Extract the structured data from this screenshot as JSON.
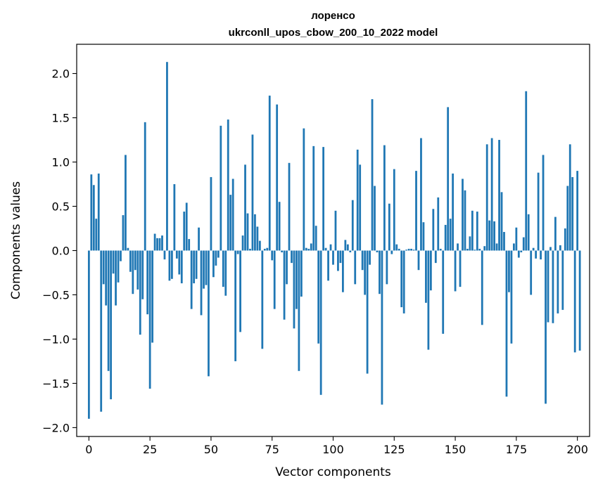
{
  "chart_data": {
    "type": "bar",
    "title": "лоренсо",
    "subtitle": "ukrconll_upos_cbow_200_10_2022 model",
    "xlabel": "Vector components",
    "ylabel": "Components values",
    "xlim": [
      -5,
      205
    ],
    "ylim": [
      -2.1,
      2.33
    ],
    "xticks": [
      0,
      25,
      50,
      75,
      100,
      125,
      150,
      175,
      200
    ],
    "xtick_labels": [
      "0",
      "25",
      "50",
      "75",
      "100",
      "125",
      "150",
      "175",
      "200"
    ],
    "yticks": [
      -2.0,
      -1.5,
      -1.0,
      -0.5,
      0.0,
      0.5,
      1.0,
      1.5,
      2.0
    ],
    "ytick_labels": [
      "−2.0",
      "−1.5",
      "−1.0",
      "−0.5",
      "0.0",
      "0.5",
      "1.0",
      "1.5",
      "2.0"
    ],
    "bar_color": "#1f77b4",
    "grid": false,
    "values": [
      -1.9,
      0.86,
      0.74,
      0.36,
      0.87,
      -1.82,
      -0.38,
      -0.62,
      -1.36,
      -1.68,
      -0.26,
      -0.62,
      -0.36,
      -0.12,
      0.4,
      1.08,
      0.03,
      -0.24,
      -0.49,
      -0.22,
      -0.44,
      -0.95,
      -0.55,
      1.45,
      -0.72,
      -1.56,
      -1.04,
      0.19,
      0.14,
      0.14,
      0.17,
      -0.1,
      2.13,
      -0.34,
      -0.32,
      0.75,
      -0.09,
      -0.27,
      -0.37,
      0.44,
      0.54,
      0.13,
      -0.66,
      -0.37,
      -0.32,
      0.26,
      -0.73,
      -0.43,
      -0.39,
      -1.42,
      0.83,
      -0.3,
      -0.17,
      -0.08,
      1.41,
      -0.41,
      -0.51,
      1.48,
      0.63,
      0.81,
      -1.25,
      -0.04,
      -0.92,
      0.17,
      0.97,
      0.42,
      0.02,
      1.31,
      0.41,
      0.27,
      0.11,
      -1.11,
      0.02,
      0.03,
      1.75,
      -0.11,
      -0.66,
      1.65,
      0.55,
      -0.02,
      -0.78,
      -0.38,
      0.99,
      -0.14,
      -0.88,
      -0.66,
      -1.36,
      -0.52,
      1.38,
      0.03,
      0.02,
      0.08,
      1.18,
      0.28,
      -1.05,
      -1.63,
      1.17,
      0.03,
      -0.34,
      0.07,
      -0.16,
      0.45,
      -0.23,
      -0.14,
      -0.47,
      0.12,
      0.07,
      -0.02,
      0.57,
      -0.38,
      1.14,
      0.97,
      -0.22,
      -0.5,
      -1.39,
      -0.16,
      1.71,
      0.73,
      -0.02,
      -0.49,
      -1.74,
      1.19,
      -0.38,
      0.53,
      -0.04,
      0.92,
      0.07,
      0.02,
      -0.64,
      -0.71,
      0.01,
      0.02,
      0.02,
      0.01,
      0.9,
      -0.22,
      1.27,
      0.32,
      -0.59,
      -1.12,
      -0.45,
      0.47,
      -0.14,
      0.6,
      0.02,
      -0.94,
      0.29,
      1.62,
      0.36,
      0.87,
      -0.46,
      0.08,
      -0.41,
      0.81,
      0.68,
      0.02,
      0.16,
      0.45,
      0.01,
      0.44,
      0.02,
      -0.84,
      0.05,
      1.2,
      0.34,
      1.27,
      0.33,
      0.08,
      1.25,
      0.66,
      0.21,
      -1.65,
      -0.47,
      -1.05,
      0.08,
      0.26,
      -0.08,
      -0.02,
      0.15,
      1.8,
      0.41,
      -0.5,
      0.03,
      -0.09,
      0.88,
      -0.1,
      1.08,
      -1.73,
      -0.81,
      0.04,
      -0.82,
      0.38,
      -0.71,
      0.06,
      -0.67,
      0.25,
      0.73,
      1.2,
      0.83,
      -1.15,
      0.9,
      -1.13
    ]
  }
}
